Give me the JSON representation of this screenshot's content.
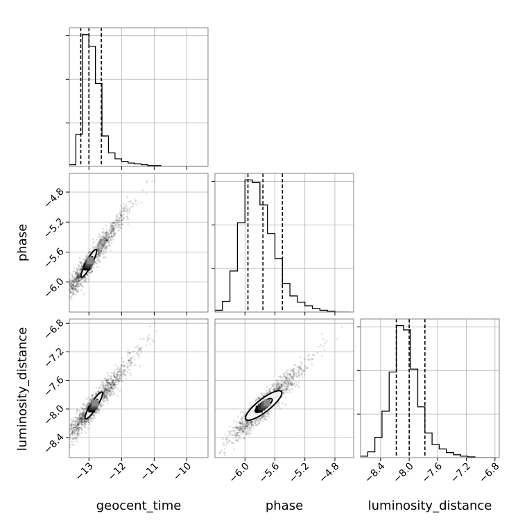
{
  "chart_data": {
    "type": "corner",
    "parameters": [
      {
        "name": "geocent_time",
        "label": "geocent_time",
        "range": [
          -13.6,
          -9.35
        ],
        "ticks": [
          -13,
          -12,
          -11,
          -10
        ],
        "tick_labels": [
          "−13",
          "−12",
          "−11",
          "−10"
        ]
      },
      {
        "name": "phase",
        "label": "phase",
        "range": [
          -6.4,
          -4.55
        ],
        "ticks": [
          -6.0,
          -5.6,
          -5.2,
          -4.8
        ],
        "tick_labels": [
          "−6.0",
          "−5.6",
          "−5.2",
          "−4.8"
        ]
      },
      {
        "name": "luminosity_distance",
        "label": "luminosity_distance",
        "range": [
          -8.68,
          -6.74
        ],
        "ticks": [
          -8.4,
          -8.0,
          -7.6,
          -7.2,
          -6.8
        ],
        "tick_labels": [
          "−8.4",
          "−8.0",
          "−7.6",
          "−7.2",
          "−6.8"
        ]
      }
    ],
    "histograms": [
      {
        "parameter": "geocent_time",
        "bin_edges": [
          -13.6,
          -13.4,
          -13.2,
          -13.0,
          -12.8,
          -12.6,
          -12.4,
          -12.2,
          -12.0,
          -11.8,
          -11.6,
          -11.4,
          -11.2,
          -11.0,
          -10.8,
          -10.6,
          -10.4,
          -10.2,
          -10.0,
          -9.8,
          -9.6,
          -9.4
        ],
        "counts": [
          2,
          38,
          156,
          142,
          98,
          36,
          16,
          9,
          6,
          4,
          3,
          2,
          1,
          1,
          0,
          0,
          0,
          0,
          0,
          0,
          0
        ],
        "quantiles": [
          -13.25,
          -13.0,
          -12.62
        ]
      },
      {
        "parameter": "phase",
        "bin_edges": [
          -6.4,
          -6.3,
          -6.2,
          -6.1,
          -6.0,
          -5.9,
          -5.8,
          -5.7,
          -5.6,
          -5.5,
          -5.4,
          -5.3,
          -5.2,
          -5.1,
          -5.0,
          -4.9,
          -4.8,
          -4.7,
          -4.6
        ],
        "counts": [
          2,
          12,
          46,
          100,
          148,
          145,
          120,
          88,
          60,
          32,
          18,
          11,
          7,
          4,
          2,
          1,
          0,
          0
        ],
        "quantiles": [
          -5.96,
          -5.76,
          -5.5
        ]
      },
      {
        "parameter": "luminosity_distance",
        "bin_edges": [
          -8.68,
          -8.58,
          -8.48,
          -8.38,
          -8.28,
          -8.18,
          -8.08,
          -7.98,
          -7.88,
          -7.78,
          -7.68,
          -7.58,
          -7.48,
          -7.38,
          -7.28,
          -7.18,
          -7.08,
          -6.98,
          -6.88,
          -6.78
        ],
        "counts": [
          2,
          8,
          28,
          64,
          118,
          182,
          176,
          122,
          70,
          34,
          18,
          12,
          7,
          4,
          2,
          1,
          0,
          0,
          0
        ],
        "quantiles": [
          -8.18,
          -8.0,
          -7.78
        ]
      }
    ],
    "pairs": [
      {
        "x": "geocent_time",
        "y": "phase",
        "mean": [
          -13.0,
          -5.75
        ],
        "std": [
          0.45,
          0.28
        ],
        "corr": 0.96,
        "n_points": 1400,
        "contours": [
          {
            "level": 0.39,
            "a": 0.23,
            "b": 0.045,
            "angle_deg": 62
          },
          {
            "level": 0.86,
            "a": 0.48,
            "b": 0.09,
            "angle_deg": 62
          }
        ]
      },
      {
        "x": "geocent_time",
        "y": "luminosity_distance",
        "mean": [
          -12.85,
          -7.95
        ],
        "std": [
          0.45,
          0.26
        ],
        "corr": 0.95,
        "n_points": 1400,
        "contours": [
          {
            "level": 0.39,
            "a": 0.22,
            "b": 0.05,
            "angle_deg": 58
          },
          {
            "level": 0.86,
            "a": 0.48,
            "b": 0.1,
            "angle_deg": 58
          }
        ]
      },
      {
        "x": "phase",
        "y": "luminosity_distance",
        "mean": [
          -5.75,
          -7.95
        ],
        "std": [
          0.2,
          0.22
        ],
        "corr": 0.93,
        "n_points": 1400,
        "contours": [
          {
            "level": 0.39,
            "a": 0.14,
            "b": 0.045,
            "angle_deg": 38
          },
          {
            "level": 0.86,
            "a": 0.3,
            "b": 0.085,
            "angle_deg": 38
          }
        ]
      }
    ],
    "grid": true
  }
}
